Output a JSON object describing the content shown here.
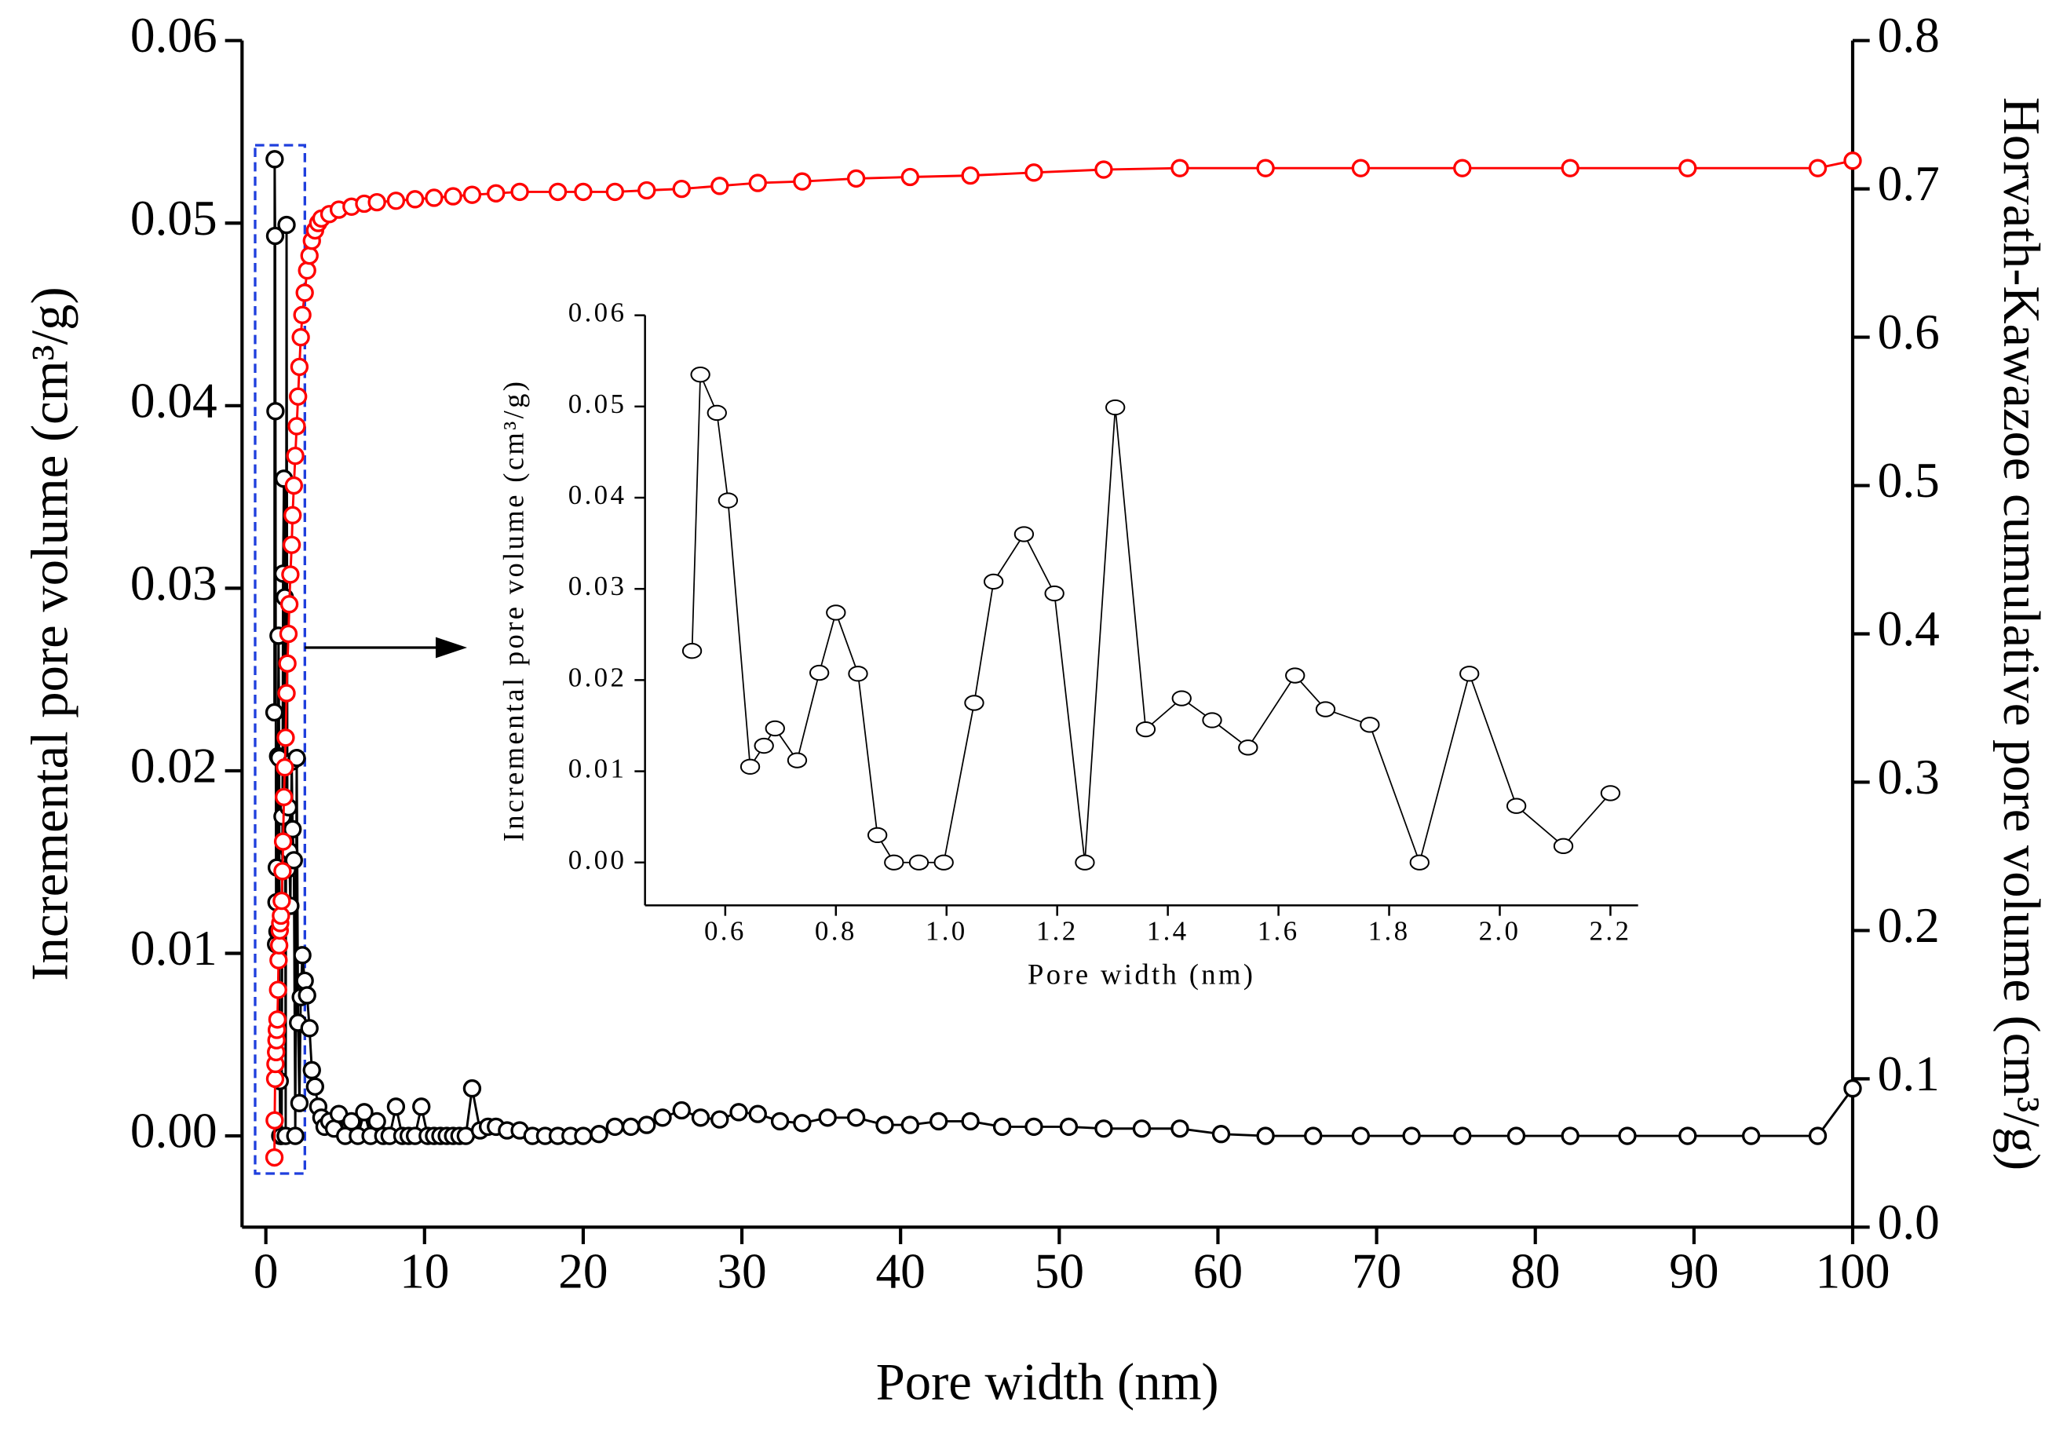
{
  "chart_data": [
    {
      "type": "line",
      "xlabel": "Pore width (nm)",
      "ylabel": "Incremental pore volume (cm³/g)",
      "y2label": "Horvath-Kawazoe cumulative pore volume (cm³/g)",
      "xlim": [
        -1.5,
        100
      ],
      "xticks": [
        0,
        10,
        20,
        30,
        40,
        50,
        60,
        70,
        80,
        90,
        100
      ],
      "ylim": [
        -0.005,
        0.06
      ],
      "yticks": [
        {
          "value": 0,
          "label": "0.00"
        },
        {
          "value": 0.01,
          "label": "0.01"
        },
        {
          "value": 0.02,
          "label": "0.02"
        },
        {
          "value": 0.03,
          "label": "0.03"
        },
        {
          "value": 0.04,
          "label": "0.04"
        },
        {
          "value": 0.05,
          "label": "0.05"
        },
        {
          "value": 0.06,
          "label": "0.06"
        }
      ],
      "y2lim": [
        0,
        0.8
      ],
      "y2ticks": [
        {
          "value": 0,
          "label": "0.0"
        },
        {
          "value": 0.1,
          "label": "0.1"
        },
        {
          "value": 0.2,
          "label": "0.2"
        },
        {
          "value": 0.3,
          "label": "0.3"
        },
        {
          "value": 0.4,
          "label": "0.4"
        },
        {
          "value": 0.5,
          "label": "0.5"
        },
        {
          "value": 0.6,
          "label": "0.6"
        },
        {
          "value": 0.7,
          "label": "0.7"
        },
        {
          "value": 0.8,
          "label": "0.8"
        }
      ],
      "series": [
        {
          "color": "#000000",
          "x": [
            0.54,
            0.555,
            0.585,
            0.605,
            0.645,
            0.67,
            0.69,
            0.73,
            0.77,
            0.8,
            0.84,
            0.875,
            0.905,
            0.95,
            0.995,
            1.05,
            1.085,
            1.14,
            1.195,
            1.25,
            1.305,
            1.36,
            1.425,
            1.48,
            1.545,
            1.63,
            1.685,
            1.765,
            1.855,
            1.945,
            2.03,
            2.115,
            2.2,
            2.3,
            2.45,
            2.6,
            2.75,
            2.9,
            3.1,
            3.3,
            3.5,
            3.7,
            4,
            4.3,
            4.6,
            5,
            5.4,
            5.8,
            6.2,
            6.6,
            7,
            7.4,
            7.8,
            8.2,
            8.6,
            9,
            9.4,
            9.8,
            10.2,
            10.6,
            11,
            11.4,
            11.8,
            12.2,
            12.6,
            13,
            13.5,
            14,
            14.5,
            15.2,
            16,
            16.8,
            17.6,
            18.4,
            19.2,
            20,
            21,
            22,
            23,
            24,
            25,
            26.2,
            27.4,
            28.6,
            29.8,
            31,
            32.4,
            33.8,
            35.4,
            37.2,
            39,
            40.6,
            42.4,
            44.4,
            46.4,
            48.4,
            50.6,
            52.8,
            55.2,
            57.6,
            60.2,
            63,
            66,
            69,
            72.2,
            75.4,
            78.8,
            82.2,
            85.8,
            89.6,
            93.6,
            97.8,
            100
          ],
          "values": [
            0.0232,
            0.0535,
            0.0493,
            0.0397,
            0.0105,
            0.0128,
            0.0147,
            0.0112,
            0.0208,
            0.0274,
            0.0207,
            0.003,
            0,
            0,
            0,
            0.0175,
            0.0308,
            0.036,
            0.0295,
            0,
            0.0499,
            0.0146,
            0.018,
            0.0156,
            0.0126,
            0.0205,
            0.0168,
            0.0151,
            0,
            0.0207,
            0.0062,
            0.0018,
            0.0076,
            0.0099,
            0.0085,
            0.0077,
            0.0059,
            0.0036,
            0.0027,
            0.0016,
            0.001,
            0.0005,
            0.0008,
            0.0004,
            0.0012,
            0,
            0.0008,
            0,
            0.0013,
            0,
            0.0008,
            0,
            0,
            0.0016,
            0,
            0,
            0,
            0.0016,
            0,
            0,
            0,
            0,
            0,
            0,
            0,
            0.0026,
            0.0003,
            0.0005,
            0.0005,
            0.0003,
            0.0003,
            0,
            0,
            0,
            0,
            0,
            0.0001,
            0.0005,
            0.0005,
            0.0006,
            0.001,
            0.0014,
            0.001,
            0.0009,
            0.0013,
            0.0012,
            0.0008,
            0.0007,
            0.001,
            0.001,
            0.0006,
            0.0006,
            0.0008,
            0.0008,
            0.0005,
            0.0005,
            0.0005,
            0.0004,
            0.0004,
            0.0004,
            0.0001,
            0,
            0,
            0,
            0,
            0,
            0,
            0,
            0,
            0,
            0,
            0,
            0.0026
          ]
        },
        {
          "color": "#ff0000",
          "axis": "y2",
          "x": [
            0.54,
            0.555,
            0.585,
            0.605,
            0.645,
            0.67,
            0.69,
            0.73,
            0.77,
            0.8,
            0.84,
            0.875,
            0.905,
            0.95,
            1.0,
            1.05,
            1.085,
            1.14,
            1.195,
            1.25,
            1.305,
            1.36,
            1.425,
            1.48,
            1.545,
            1.63,
            1.685,
            1.765,
            1.855,
            1.945,
            2.03,
            2.115,
            2.2,
            2.3,
            2.45,
            2.6,
            2.75,
            2.9,
            3.1,
            3.3,
            3.5,
            4,
            4.6,
            5.4,
            6.2,
            7,
            8.2,
            9.4,
            10.6,
            11.8,
            13,
            14.5,
            16,
            18.4,
            20,
            22,
            24,
            26.2,
            28.6,
            31,
            33.8,
            37.2,
            40.6,
            44.4,
            48.4,
            52.8,
            57.6,
            63,
            69,
            75.4,
            82.2,
            89.6,
            97.8,
            100
          ],
          "values": [
            0.047,
            0.072,
            0.1,
            0.11,
            0.118,
            0.126,
            0.133,
            0.14,
            0.16,
            0.18,
            0.19,
            0.2,
            0.205,
            0.21,
            0.22,
            0.24,
            0.26,
            0.29,
            0.31,
            0.33,
            0.36,
            0.38,
            0.4,
            0.42,
            0.44,
            0.46,
            0.48,
            0.5,
            0.52,
            0.54,
            0.56,
            0.58,
            0.6,
            0.615,
            0.63,
            0.645,
            0.655,
            0.665,
            0.672,
            0.677,
            0.68,
            0.683,
            0.686,
            0.688,
            0.69,
            0.691,
            0.692,
            0.693,
            0.694,
            0.695,
            0.696,
            0.697,
            0.698,
            0.698,
            0.698,
            0.698,
            0.699,
            0.7,
            0.702,
            0.704,
            0.705,
            0.707,
            0.708,
            0.709,
            0.711,
            0.713,
            0.714,
            0.714,
            0.714,
            0.714,
            0.714,
            0.714,
            0.714,
            0.719
          ]
        }
      ]
    },
    {
      "type": "line",
      "xlabel": "Pore width (nm)",
      "ylabel": "Incremental pore volume (cm³/g)",
      "xlim": [
        0.455,
        2.25
      ],
      "xticks": [
        0.6,
        0.8,
        {
          "value": 1,
          "label": "1.0"
        },
        1.2,
        1.4,
        1.6,
        1.8,
        {
          "value": 2,
          "label": "2.0"
        },
        2.2
      ],
      "ylim": [
        -0.0047,
        0.06
      ],
      "yticks": [
        {
          "value": 0,
          "label": "0.00"
        },
        {
          "value": 0.01,
          "label": "0.01"
        },
        {
          "value": 0.02,
          "label": "0.02"
        },
        {
          "value": 0.03,
          "label": "0.03"
        },
        {
          "value": 0.04,
          "label": "0.04"
        },
        {
          "value": 0.05,
          "label": "0.05"
        },
        {
          "value": 0.06,
          "label": "0.06"
        }
      ],
      "series": [
        {
          "color": "#000000",
          "x": [
            0.54,
            0.555,
            0.585,
            0.605,
            0.645,
            0.67,
            0.69,
            0.73,
            0.77,
            0.8,
            0.84,
            0.875,
            0.905,
            0.95,
            0.995,
            1.05,
            1.085,
            1.14,
            1.195,
            1.25,
            1.305,
            1.36,
            1.425,
            1.48,
            1.545,
            1.63,
            1.685,
            1.765,
            1.855,
            1.945,
            2.03,
            2.115,
            2.2
          ],
          "values": [
            0.0232,
            0.0535,
            0.0493,
            0.0397,
            0.0105,
            0.0128,
            0.0147,
            0.0112,
            0.0208,
            0.0274,
            0.0207,
            0.003,
            0,
            0,
            0,
            0.0175,
            0.0308,
            0.036,
            0.0295,
            0,
            0.0499,
            0.0146,
            0.018,
            0.0156,
            0.0126,
            0.0205,
            0.0168,
            0.0151,
            0,
            0.0207,
            0.0062,
            0.0018,
            0.0076
          ]
        }
      ]
    }
  ]
}
